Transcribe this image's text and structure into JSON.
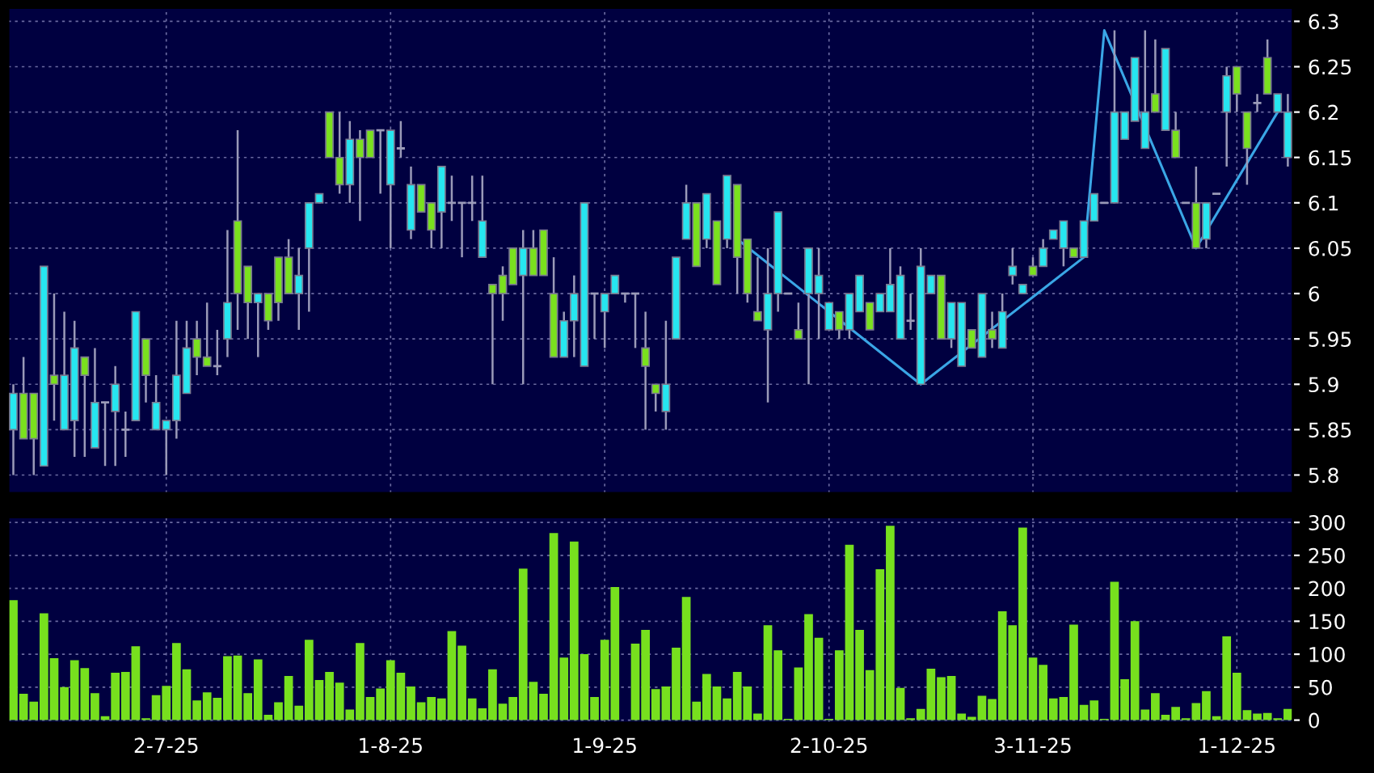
{
  "chart_data": [
    {
      "type": "candlestick",
      "categories": [
        null,
        null,
        null,
        null,
        null,
        null,
        null,
        null,
        null,
        null,
        null,
        null,
        null,
        null,
        null,
        null,
        null,
        null,
        null,
        null,
        null,
        null,
        null,
        null,
        null,
        null,
        null,
        null,
        null,
        null,
        null,
        null,
        null,
        null,
        null,
        null,
        null,
        null,
        null,
        null,
        null,
        null,
        null,
        null,
        null,
        null,
        null,
        null,
        null,
        null,
        null,
        null,
        null,
        null,
        null,
        null,
        null,
        null,
        null,
        null,
        null,
        null,
        null,
        null,
        null,
        null,
        null,
        null,
        null,
        null,
        null,
        null,
        null,
        null,
        null,
        null,
        null,
        null,
        null,
        null,
        null,
        null,
        null,
        null,
        null,
        null,
        null,
        null,
        null,
        null,
        null,
        null,
        null,
        null,
        null,
        null,
        null,
        null,
        null,
        null,
        null,
        null,
        null,
        null,
        null,
        null,
        null,
        null,
        null,
        null,
        null,
        null,
        null,
        null,
        null,
        null,
        null,
        null,
        null,
        null,
        null,
        null,
        null,
        null,
        null,
        null
      ],
      "ohlc": [
        [
          5.85,
          5.9,
          5.8,
          5.89
        ],
        [
          5.89,
          5.93,
          5.84,
          5.84
        ],
        [
          5.89,
          5.89,
          5.8,
          5.84
        ],
        [
          5.81,
          6.03,
          5.81,
          6.03
        ],
        [
          5.91,
          6.0,
          5.86,
          5.9
        ],
        [
          5.85,
          5.98,
          5.85,
          5.91
        ],
        [
          5.86,
          5.97,
          5.82,
          5.94
        ],
        [
          5.93,
          5.93,
          5.82,
          5.91
        ],
        [
          5.83,
          5.94,
          5.83,
          5.88
        ],
        [
          5.88,
          5.88,
          5.81,
          5.88
        ],
        [
          5.87,
          5.92,
          5.81,
          5.9
        ],
        [
          5.85,
          5.87,
          5.82,
          5.85
        ],
        [
          5.86,
          5.98,
          5.86,
          5.98
        ],
        [
          5.95,
          5.95,
          5.88,
          5.91
        ],
        [
          5.85,
          5.91,
          5.85,
          5.88
        ],
        [
          5.85,
          5.86,
          5.8,
          5.86
        ],
        [
          5.86,
          5.97,
          5.84,
          5.91
        ],
        [
          5.89,
          5.97,
          5.89,
          5.94
        ],
        [
          5.95,
          5.97,
          5.91,
          5.93
        ],
        [
          5.93,
          5.99,
          5.92,
          5.92
        ],
        [
          5.92,
          5.96,
          5.91,
          5.92
        ],
        [
          5.95,
          6.07,
          5.93,
          5.99
        ],
        [
          6.08,
          6.18,
          5.96,
          6.0
        ],
        [
          6.03,
          6.03,
          5.95,
          5.99
        ],
        [
          5.99,
          6.0,
          5.93,
          6.0
        ],
        [
          6.0,
          6.0,
          5.96,
          5.97
        ],
        [
          6.04,
          6.04,
          5.97,
          5.99
        ],
        [
          6.04,
          6.06,
          6.0,
          6.0
        ],
        [
          6.0,
          6.05,
          5.96,
          6.02
        ],
        [
          6.05,
          6.1,
          5.98,
          6.1
        ],
        [
          6.1,
          6.11,
          6.1,
          6.11
        ],
        [
          6.2,
          6.2,
          6.15,
          6.15
        ],
        [
          6.15,
          6.2,
          6.11,
          6.12
        ],
        [
          6.12,
          6.19,
          6.1,
          6.17
        ],
        [
          6.17,
          6.18,
          6.08,
          6.15
        ],
        [
          6.18,
          6.18,
          6.15,
          6.15
        ],
        [
          6.18,
          6.18,
          6.11,
          6.18
        ],
        [
          6.12,
          6.18,
          6.05,
          6.18
        ],
        [
          6.16,
          6.19,
          6.15,
          6.16
        ],
        [
          6.07,
          6.14,
          6.06,
          6.12
        ],
        [
          6.12,
          6.12,
          6.09,
          6.09
        ],
        [
          6.1,
          6.1,
          6.05,
          6.07
        ],
        [
          6.09,
          6.14,
          6.05,
          6.14
        ],
        [
          6.1,
          6.13,
          6.08,
          6.1
        ],
        [
          6.1,
          6.1,
          6.04,
          6.1
        ],
        [
          6.1,
          6.13,
          6.08,
          6.1
        ],
        [
          6.04,
          6.13,
          6.04,
          6.08
        ],
        [
          6.01,
          6.01,
          5.9,
          6.0
        ],
        [
          6.02,
          6.03,
          5.97,
          6.0
        ],
        [
          6.05,
          6.05,
          6.01,
          6.01
        ],
        [
          6.02,
          6.07,
          5.9,
          6.05
        ],
        [
          6.05,
          6.07,
          6.02,
          6.02
        ],
        [
          6.07,
          6.07,
          6.02,
          6.02
        ],
        [
          6.0,
          6.04,
          5.93,
          5.93
        ],
        [
          5.93,
          5.98,
          5.93,
          5.97
        ],
        [
          5.97,
          6.02,
          5.93,
          6.0
        ],
        [
          5.92,
          6.1,
          5.92,
          6.1
        ],
        [
          6.0,
          6.0,
          5.95,
          6.0
        ],
        [
          5.98,
          6.0,
          5.94,
          6.0
        ],
        [
          6.0,
          6.02,
          6.0,
          6.02
        ],
        [
          6.0,
          6.0,
          5.99,
          6.0
        ],
        [
          6.0,
          6.0,
          5.94,
          6.0
        ],
        [
          5.94,
          5.98,
          5.85,
          5.92
        ],
        [
          5.9,
          5.9,
          5.87,
          5.89
        ],
        [
          5.87,
          5.97,
          5.85,
          5.9
        ],
        [
          5.95,
          6.04,
          5.95,
          6.04
        ],
        [
          6.06,
          6.12,
          6.06,
          6.1
        ],
        [
          6.1,
          6.1,
          6.03,
          6.03
        ],
        [
          6.06,
          6.11,
          6.05,
          6.11
        ],
        [
          6.08,
          6.08,
          6.01,
          6.01
        ],
        [
          6.06,
          6.13,
          6.05,
          6.13
        ],
        [
          6.12,
          6.12,
          6.0,
          6.04
        ],
        [
          6.06,
          6.06,
          5.99,
          6.0
        ],
        [
          5.98,
          6.04,
          5.97,
          5.97
        ],
        [
          5.96,
          6.05,
          5.88,
          6.0
        ],
        [
          6.0,
          6.09,
          5.98,
          6.09
        ],
        [
          6.0,
          6.0,
          6.0,
          6.0
        ],
        [
          5.96,
          5.99,
          5.95,
          5.95
        ],
        [
          6.0,
          6.05,
          5.9,
          6.05
        ],
        [
          6.0,
          6.05,
          5.95,
          6.02
        ],
        [
          5.96,
          5.99,
          5.96,
          5.99
        ],
        [
          5.98,
          5.98,
          5.95,
          5.96
        ],
        [
          5.96,
          6.0,
          5.95,
          6.0
        ],
        [
          5.98,
          6.02,
          5.98,
          6.02
        ],
        [
          5.99,
          5.99,
          5.96,
          5.96
        ],
        [
          5.98,
          6.0,
          5.98,
          6.0
        ],
        [
          5.98,
          6.05,
          5.98,
          6.01
        ],
        [
          5.95,
          6.03,
          5.95,
          6.02
        ],
        [
          5.97,
          6.0,
          5.96,
          5.97
        ],
        [
          5.9,
          6.05,
          5.9,
          6.03
        ],
        [
          6.0,
          6.02,
          6.0,
          6.02
        ],
        [
          6.02,
          6.02,
          5.95,
          5.95
        ],
        [
          5.95,
          5.99,
          5.94,
          5.99
        ],
        [
          5.92,
          5.99,
          5.92,
          5.99
        ],
        [
          5.96,
          5.96,
          5.94,
          5.94
        ],
        [
          5.93,
          6.0,
          5.93,
          6.0
        ],
        [
          5.96,
          5.98,
          5.94,
          5.95
        ],
        [
          5.94,
          6.0,
          5.94,
          5.98
        ],
        [
          6.02,
          6.05,
          6.01,
          6.03
        ],
        [
          6.0,
          6.01,
          6.0,
          6.01
        ],
        [
          6.03,
          6.04,
          6.02,
          6.02
        ],
        [
          6.03,
          6.06,
          6.03,
          6.05
        ],
        [
          6.06,
          6.07,
          6.06,
          6.07
        ],
        [
          6.05,
          6.08,
          6.03,
          6.08
        ],
        [
          6.05,
          6.05,
          6.04,
          6.04
        ],
        [
          6.04,
          6.08,
          6.04,
          6.08
        ],
        [
          6.08,
          6.11,
          6.08,
          6.11
        ],
        [
          6.1,
          6.1,
          6.1,
          6.1
        ],
        [
          6.1,
          6.29,
          6.1,
          6.2
        ],
        [
          6.17,
          6.2,
          6.17,
          6.2
        ],
        [
          6.19,
          6.26,
          6.19,
          6.26
        ],
        [
          6.16,
          6.29,
          6.16,
          6.2
        ],
        [
          6.22,
          6.28,
          6.2,
          6.2
        ],
        [
          6.18,
          6.27,
          6.18,
          6.27
        ],
        [
          6.18,
          6.2,
          6.15,
          6.15
        ],
        [
          6.1,
          6.1,
          6.1,
          6.1
        ],
        [
          6.1,
          6.14,
          6.05,
          6.05
        ],
        [
          6.06,
          6.1,
          6.05,
          6.1
        ],
        [
          6.11,
          6.11,
          6.11,
          6.11
        ],
        [
          6.2,
          6.25,
          6.14,
          6.24
        ],
        [
          6.25,
          6.25,
          6.2,
          6.22
        ],
        [
          6.2,
          6.2,
          6.12,
          6.16
        ],
        [
          6.21,
          6.22,
          6.2,
          6.21
        ],
        [
          6.26,
          6.28,
          6.22,
          6.22
        ],
        [
          6.2,
          6.22,
          6.2,
          6.22
        ],
        [
          6.15,
          6.22,
          6.14,
          6.2
        ]
      ],
      "colors": [
        "#26e6f0",
        "#7ae11e",
        "#7ae11e",
        "#26e6f0",
        "#7ae11e",
        "#26e6f0",
        "#26e6f0",
        "#7ae11e",
        "#26e6f0",
        "#9a9ab8",
        "#26e6f0",
        "#9a9ab8",
        "#26e6f0",
        "#7ae11e",
        "#26e6f0",
        "#26e6f0",
        "#26e6f0",
        "#26e6f0",
        "#7ae11e",
        "#7ae11e",
        "#9a9ab8",
        "#26e6f0",
        "#7ae11e",
        "#7ae11e",
        "#26e6f0",
        "#7ae11e",
        "#7ae11e",
        "#7ae11e",
        "#26e6f0",
        "#26e6f0",
        "#26e6f0",
        "#7ae11e",
        "#7ae11e",
        "#26e6f0",
        "#7ae11e",
        "#7ae11e",
        "#9a9ab8",
        "#26e6f0",
        "#9a9ab8",
        "#26e6f0",
        "#7ae11e",
        "#7ae11e",
        "#26e6f0",
        "#9a9ab8",
        "#9a9ab8",
        "#9a9ab8",
        "#26e6f0",
        "#7ae11e",
        "#7ae11e",
        "#7ae11e",
        "#26e6f0",
        "#7ae11e",
        "#7ae11e",
        "#7ae11e",
        "#26e6f0",
        "#26e6f0",
        "#26e6f0",
        "#9a9ab8",
        "#26e6f0",
        "#26e6f0",
        "#9a9ab8",
        "#9a9ab8",
        "#7ae11e",
        "#7ae11e",
        "#26e6f0",
        "#26e6f0",
        "#26e6f0",
        "#7ae11e",
        "#26e6f0",
        "#7ae11e",
        "#26e6f0",
        "#7ae11e",
        "#7ae11e",
        "#7ae11e",
        "#26e6f0",
        "#26e6f0",
        "#9a9ab8",
        "#7ae11e",
        "#26e6f0",
        "#26e6f0",
        "#26e6f0",
        "#7ae11e",
        "#26e6f0",
        "#26e6f0",
        "#7ae11e",
        "#26e6f0",
        "#26e6f0",
        "#26e6f0",
        "#9a9ab8",
        "#26e6f0",
        "#26e6f0",
        "#7ae11e",
        "#26e6f0",
        "#26e6f0",
        "#7ae11e",
        "#26e6f0",
        "#7ae11e",
        "#26e6f0",
        "#26e6f0",
        "#26e6f0",
        "#7ae11e",
        "#26e6f0",
        "#26e6f0",
        "#26e6f0",
        "#7ae11e",
        "#26e6f0",
        "#26e6f0",
        "#9a9ab8",
        "#26e6f0",
        "#26e6f0",
        "#26e6f0",
        "#26e6f0",
        "#7ae11e",
        "#26e6f0",
        "#7ae11e",
        "#9a9ab8",
        "#7ae11e",
        "#26e6f0",
        "#9a9ab8",
        "#26e6f0",
        "#7ae11e",
        "#7ae11e",
        "#9a9ab8",
        "#7ae11e",
        "#26e6f0",
        "#26e6f0"
      ],
      "series": [
        {
          "type": "line",
          "color": "#3aa6e6",
          "values": [
            null,
            null,
            null,
            null,
            null,
            null,
            null,
            null,
            null,
            null,
            null,
            null,
            null,
            null,
            null,
            null,
            null,
            null,
            null,
            null,
            null,
            null,
            null,
            null,
            null,
            null,
            null,
            null,
            null,
            null,
            null,
            null,
            null,
            null,
            null,
            null,
            null,
            null,
            null,
            null,
            null,
            null,
            null,
            null,
            null,
            null,
            null,
            null,
            null,
            null,
            null,
            null,
            null,
            null,
            null,
            null,
            null,
            null,
            null,
            null,
            null,
            null,
            null,
            null,
            null,
            null,
            null,
            null,
            null,
            null,
            null,
            6.06,
            null,
            null,
            null,
            null,
            null,
            null,
            null,
            null,
            null,
            null,
            null,
            null,
            null,
            null,
            null,
            null,
            null,
            5.9,
            null,
            null,
            null,
            null,
            null,
            null,
            null,
            null,
            null,
            null,
            null,
            null,
            null,
            null,
            null,
            6.04,
            null,
            6.29,
            null,
            null,
            null,
            null,
            null,
            null,
            null,
            null,
            6.05,
            null,
            null,
            null,
            null,
            null,
            null,
            null,
            6.2,
            null
          ]
        }
      ],
      "ylim": [
        5.78,
        6.315
      ],
      "yticks": [
        5.8,
        5.85,
        5.9,
        5.95,
        6,
        6.05,
        6.1,
        6.15,
        6.2,
        6.25,
        6.3
      ],
      "grid": true,
      "tick_labels": "y"
    },
    {
      "type": "bar",
      "categories": [
        null,
        null,
        null,
        null,
        null,
        null,
        null,
        null,
        null,
        null,
        null,
        null,
        null,
        null,
        null,
        "2-7-25",
        null,
        null,
        null,
        null,
        null,
        null,
        null,
        null,
        null,
        null,
        null,
        null,
        null,
        null,
        null,
        null,
        null,
        null,
        null,
        null,
        null,
        "1-8-25",
        null,
        null,
        null,
        null,
        null,
        null,
        null,
        null,
        null,
        null,
        null,
        null,
        null,
        null,
        null,
        null,
        null,
        null,
        null,
        null,
        "1-9-25",
        null,
        null,
        null,
        null,
        null,
        null,
        null,
        null,
        null,
        null,
        null,
        null,
        null,
        null,
        null,
        null,
        null,
        null,
        null,
        null,
        null,
        "2-10-25",
        null,
        null,
        null,
        null,
        null,
        null,
        null,
        null,
        null,
        null,
        null,
        null,
        null,
        null,
        null,
        null,
        null,
        null,
        null,
        "3-11-25",
        null,
        null,
        null,
        null,
        null,
        null,
        null,
        null,
        null,
        null,
        null,
        null,
        null,
        null,
        null,
        null,
        null,
        null,
        null,
        "1-12-25",
        null,
        null,
        null,
        null,
        null
      ],
      "values": [
        182,
        40,
        28,
        162,
        94,
        50,
        91,
        79,
        41,
        6,
        72,
        73,
        112,
        3,
        38,
        52,
        117,
        77,
        30,
        42,
        34,
        97,
        98,
        41,
        92,
        8,
        27,
        67,
        22,
        122,
        61,
        73,
        57,
        16,
        117,
        35,
        48,
        91,
        72,
        51,
        27,
        35,
        33,
        135,
        113,
        33,
        18,
        77,
        25,
        35,
        230,
        58,
        40,
        284,
        95,
        271,
        100,
        35,
        122,
        202,
        0,
        116,
        137,
        47,
        51,
        110,
        187,
        28,
        70,
        51,
        33,
        73,
        51,
        10,
        144,
        106,
        2,
        80,
        161,
        125,
        2,
        106,
        266,
        137,
        76,
        229,
        295,
        49,
        3,
        17,
        78,
        65,
        67,
        10,
        5,
        37,
        32,
        165,
        144,
        292,
        95,
        84,
        33,
        35,
        145,
        23,
        30,
        2,
        210,
        62,
        150,
        16,
        41,
        8,
        20,
        3,
        26,
        44,
        6,
        127,
        72,
        15,
        10,
        11,
        3,
        17
      ],
      "color": "#77e01e",
      "ylim": [
        -4,
        308
      ],
      "yticks": [
        0,
        50,
        100,
        150,
        200,
        250,
        300
      ],
      "grid": true
    }
  ]
}
